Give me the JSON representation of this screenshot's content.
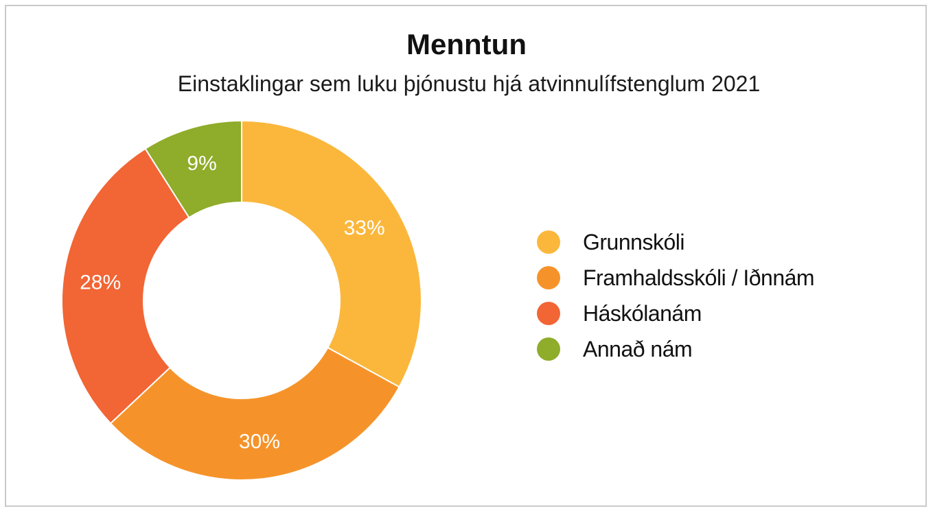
{
  "chart_data": {
    "type": "pie",
    "donut": true,
    "title": "Menntun",
    "subtitle": "Einstaklingar sem luku þjónustu hjá atvinnulífstenglum 2021",
    "slices": [
      {
        "label": "Grunnskóli",
        "value": 33,
        "display": "33%",
        "color": "#FBB73C"
      },
      {
        "label": "Framhaldsskóli / Iðnnám",
        "value": 30,
        "display": "30%",
        "color": "#F5932A"
      },
      {
        "label": "Háskólanám",
        "value": 28,
        "display": "28%",
        "color": "#F26535"
      },
      {
        "label": "Annað nám",
        "value": 9,
        "display": "9%",
        "color": "#8FAC2A"
      }
    ],
    "start": "top, clockwise",
    "legend_position": "right"
  }
}
